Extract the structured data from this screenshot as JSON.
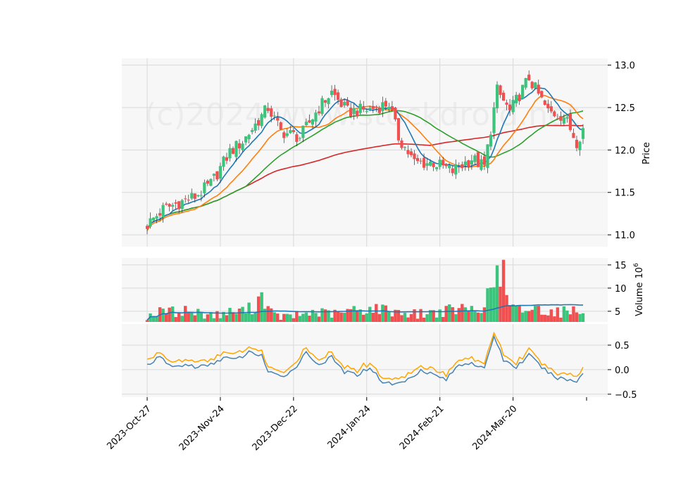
{
  "chart_data": {
    "type": "candlestick",
    "watermark": "(c)2024 www.stockdroid.net",
    "colors": {
      "up": "#3cc47c",
      "down": "#f05050",
      "ma_short": "#1f77b4",
      "ma_mid": "#ff7f0e",
      "ma_long": "#2ca02c",
      "ma_longest": "#d62728",
      "volume_ma": "#1f77b4",
      "macd": "#4682b4",
      "signal": "#ffa500",
      "panel_bg": "#f7f7f7",
      "grid": "#d9d9d9"
    },
    "x_tick_labels": [
      "2023-Oct-27",
      "2023-Nov-24",
      "2023-Dec-22",
      "2024-Jan-24",
      "2024-Feb-21",
      "2024-Mar-20"
    ],
    "price_panel": {
      "ylabel": "Price",
      "ylim": [
        10.86,
        13.08
      ],
      "ticks": [
        "11.0",
        "11.5",
        "12.0",
        "12.5",
        "13.0"
      ],
      "tick_values": [
        11.0,
        11.5,
        12.0,
        12.5,
        13.0
      ]
    },
    "volume_panel": {
      "ylabel": "Volume",
      "multiplier": "10",
      "multiplier_exp": "6",
      "ylim": [
        2.7,
        16.5
      ],
      "ticks": [
        "5",
        "10",
        "15"
      ],
      "tick_values": [
        5,
        10,
        15
      ]
    },
    "macd_panel": {
      "ylim": [
        -0.56,
        0.93
      ],
      "ticks": [
        "0.5",
        "0.0",
        "−0.5"
      ],
      "tick_values": [
        0.5,
        0.0,
        -0.5
      ]
    },
    "price_anchors": [
      [
        0,
        11.12
      ],
      [
        5,
        11.3
      ],
      [
        10,
        11.38
      ],
      [
        15,
        11.45
      ],
      [
        20,
        11.6
      ],
      [
        26,
        11.98
      ],
      [
        30,
        12.1
      ],
      [
        38,
        12.5
      ],
      [
        42,
        12.22
      ],
      [
        48,
        12.15
      ],
      [
        54,
        12.5
      ],
      [
        58,
        12.68
      ],
      [
        63,
        12.45
      ],
      [
        70,
        12.48
      ],
      [
        76,
        12.55
      ],
      [
        79,
        12.15
      ],
      [
        84,
        11.85
      ],
      [
        90,
        11.85
      ],
      [
        96,
        11.75
      ],
      [
        102,
        11.9
      ],
      [
        106,
        11.8
      ],
      [
        110,
        12.7
      ],
      [
        114,
        12.45
      ],
      [
        120,
        12.85
      ],
      [
        126,
        12.45
      ],
      [
        131,
        12.4
      ],
      [
        135,
        12.1
      ],
      [
        137,
        12.25
      ]
    ],
    "volume_anchors": [
      [
        0,
        4.0
      ],
      [
        3,
        4.6
      ],
      [
        6,
        5.2
      ],
      [
        9,
        4.8
      ],
      [
        12,
        5.3
      ],
      [
        15,
        4.7
      ],
      [
        18,
        4.5
      ],
      [
        22,
        4.2
      ],
      [
        26,
        4.8
      ],
      [
        30,
        5.1
      ],
      [
        34,
        6.0
      ],
      [
        36,
        9.0
      ],
      [
        38,
        5.5
      ],
      [
        40,
        4.0
      ],
      [
        44,
        3.8
      ],
      [
        48,
        4.2
      ],
      [
        52,
        4.8
      ],
      [
        56,
        4.6
      ],
      [
        60,
        4.4
      ],
      [
        64,
        5.2
      ],
      [
        68,
        5.4
      ],
      [
        72,
        5.6
      ],
      [
        76,
        5.2
      ],
      [
        80,
        4.8
      ],
      [
        84,
        4.4
      ],
      [
        88,
        4.6
      ],
      [
        92,
        4.9
      ],
      [
        96,
        5.3
      ],
      [
        100,
        5.5
      ],
      [
        104,
        5.2
      ],
      [
        108,
        9.0
      ],
      [
        110,
        14.5
      ],
      [
        112,
        10.0
      ],
      [
        114,
        5.5
      ],
      [
        118,
        5.3
      ],
      [
        122,
        5.6
      ],
      [
        126,
        5.2
      ],
      [
        130,
        4.8
      ],
      [
        134,
        5.5
      ],
      [
        137,
        5.6
      ]
    ],
    "macd_anchors": [
      [
        0,
        0.1
      ],
      [
        4,
        0.25
      ],
      [
        8,
        0.05
      ],
      [
        12,
        0.1
      ],
      [
        16,
        0.05
      ],
      [
        20,
        0.1
      ],
      [
        24,
        0.25
      ],
      [
        28,
        0.2
      ],
      [
        32,
        0.35
      ],
      [
        36,
        0.3
      ],
      [
        38,
        -0.05
      ],
      [
        42,
        -0.15
      ],
      [
        46,
        0.0
      ],
      [
        50,
        0.35
      ],
      [
        54,
        0.1
      ],
      [
        58,
        0.25
      ],
      [
        62,
        -0.05
      ],
      [
        66,
        -0.1
      ],
      [
        70,
        0.05
      ],
      [
        74,
        -0.25
      ],
      [
        78,
        -0.3
      ],
      [
        82,
        -0.2
      ],
      [
        86,
        0.0
      ],
      [
        90,
        -0.1
      ],
      [
        94,
        -0.2
      ],
      [
        98,
        0.1
      ],
      [
        102,
        0.15
      ],
      [
        106,
        0.0
      ],
      [
        109,
        0.7
      ],
      [
        112,
        0.2
      ],
      [
        116,
        0.05
      ],
      [
        120,
        0.3
      ],
      [
        124,
        0.05
      ],
      [
        128,
        -0.15
      ],
      [
        132,
        -0.2
      ],
      [
        135,
        -0.25
      ],
      [
        137,
        -0.05
      ]
    ]
  }
}
